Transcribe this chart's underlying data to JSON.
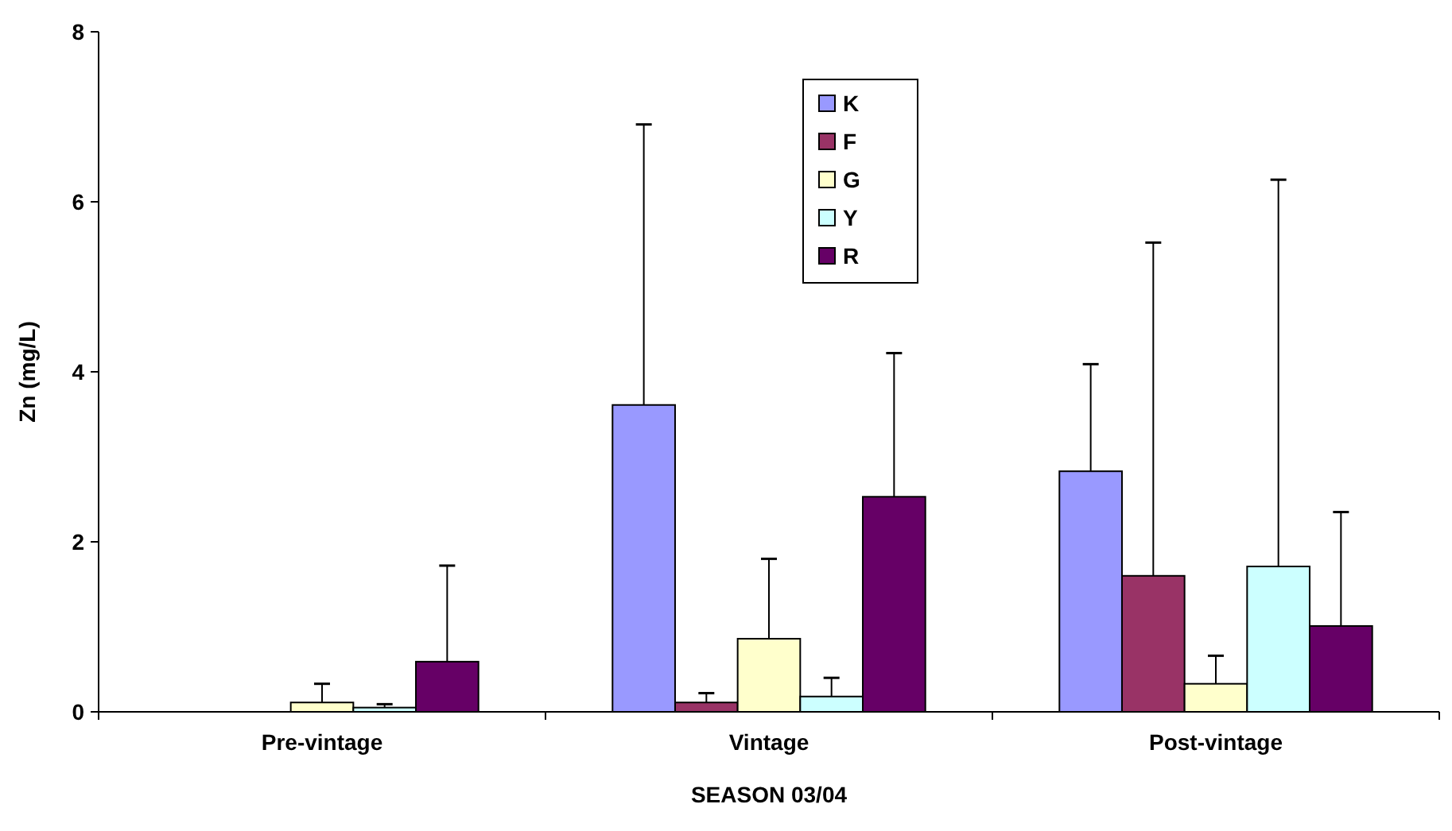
{
  "chart_data": {
    "type": "bar",
    "xlabel": "SEASON 03/04",
    "ylabel": "Zn (mg/L)",
    "categories": [
      "Pre-vintage",
      "Vintage",
      "Post-vintage"
    ],
    "series": [
      {
        "name": "K",
        "color": "#9999ff",
        "values": [
          null,
          3.61,
          2.83
        ],
        "errors": [
          null,
          [
            3.61,
            6.91
          ],
          [
            2.83,
            4.09
          ]
        ]
      },
      {
        "name": "F",
        "color": "#993366",
        "values": [
          null,
          0.11,
          1.6
        ],
        "errors": [
          null,
          [
            0.11,
            0.22
          ],
          [
            1.6,
            5.52
          ]
        ]
      },
      {
        "name": "G",
        "color": "#ffffcc",
        "values": [
          0.11,
          0.86,
          0.33
        ],
        "errors": [
          [
            0.11,
            0.33
          ],
          [
            0.86,
            1.8
          ],
          [
            0.33,
            0.66
          ]
        ]
      },
      {
        "name": "Y",
        "color": "#ccffff",
        "values": [
          0.05,
          0.18,
          1.71
        ],
        "errors": [
          [
            0.05,
            0.09
          ],
          [
            0.18,
            0.4
          ],
          [
            1.71,
            6.26
          ]
        ]
      },
      {
        "name": "R",
        "color": "#660066",
        "values": [
          0.59,
          2.53,
          1.01
        ],
        "errors": [
          [
            0.59,
            1.72
          ],
          [
            2.53,
            4.22
          ],
          [
            1.01,
            2.35
          ]
        ]
      }
    ],
    "ylim": [
      0,
      8
    ],
    "yticks": [
      0,
      2,
      4,
      6,
      8
    ],
    "grid": false,
    "legend": "top"
  }
}
